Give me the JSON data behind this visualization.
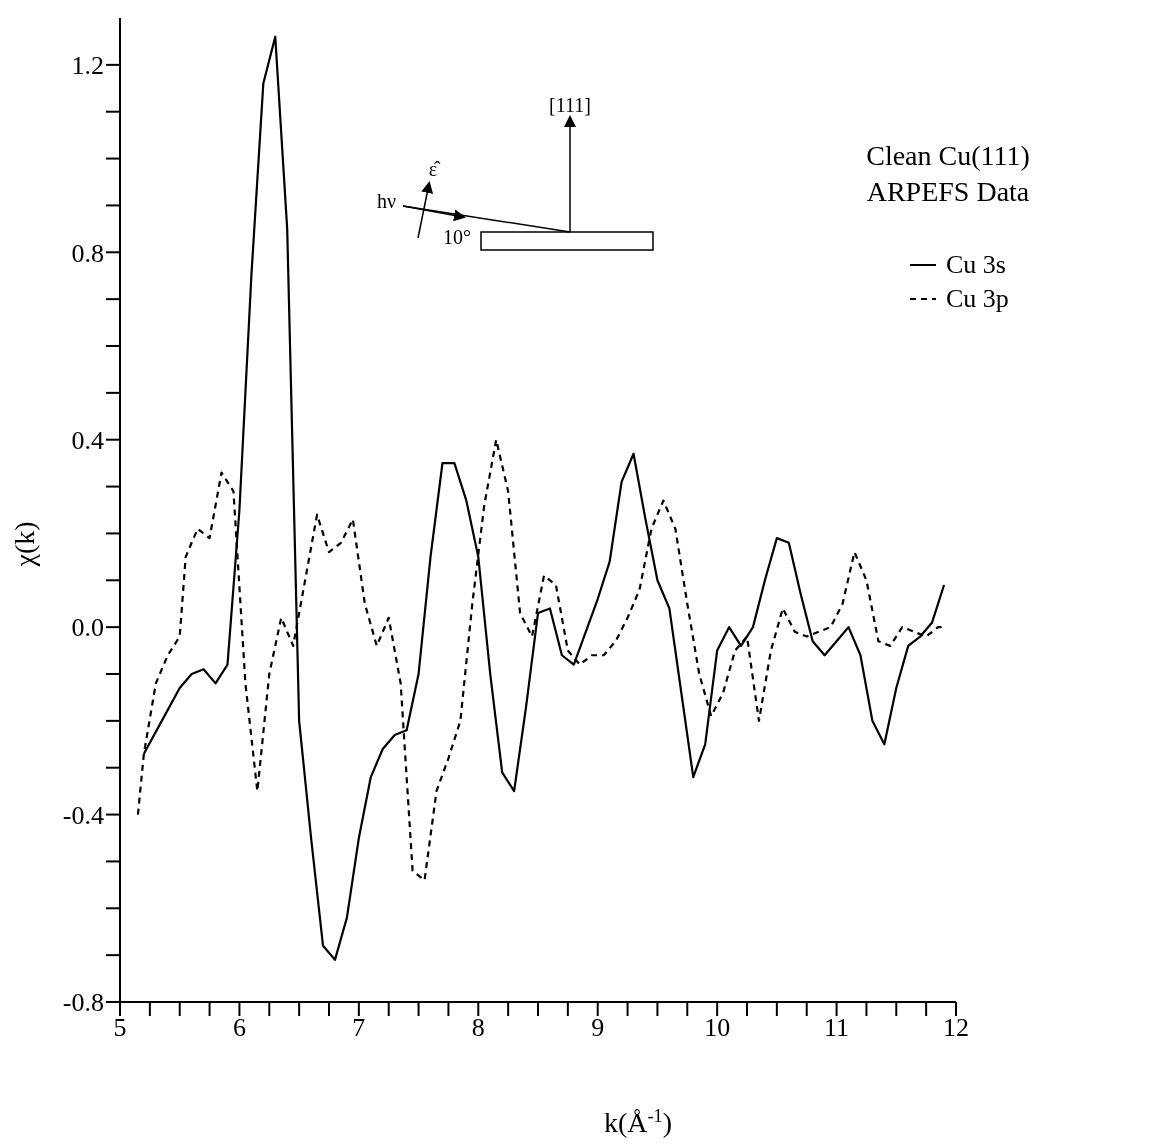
{
  "chart_data": {
    "type": "line",
    "title": "Clean Cu(111)",
    "subtitle": "ARPEFS Data",
    "xlabel": "k(Å$^{-1}$)",
    "ylabel": "χ(k)",
    "xlim": [
      5,
      12
    ],
    "xticks": [
      5,
      {
        "value": 5.25,
        "label": null
      },
      {
        "value": 5.5,
        "label": null
      },
      {
        "value": 5.75,
        "label": null
      },
      6,
      {
        "value": 6.25,
        "label": null
      },
      {
        "value": 6.5,
        "label": null
      },
      {
        "value": 6.75,
        "label": null
      },
      7,
      {
        "value": 7.25,
        "label": null
      },
      {
        "value": 7.5,
        "label": null
      },
      {
        "value": 7.75,
        "label": null
      },
      8,
      {
        "value": 8.25,
        "label": null
      },
      {
        "value": 8.5,
        "label": null
      },
      {
        "value": 8.75,
        "label": null
      },
      9,
      {
        "value": 9.25,
        "label": null
      },
      {
        "value": 9.5,
        "label": null
      },
      {
        "value": 9.75,
        "label": null
      },
      10,
      {
        "value": 10.25,
        "label": null
      },
      {
        "value": 10.5,
        "label": null
      },
      {
        "value": 10.75,
        "label": null
      },
      11,
      {
        "value": 11.25,
        "label": null
      },
      {
        "value": 11.5,
        "label": null
      },
      {
        "value": 11.75,
        "label": null
      },
      12
    ],
    "ylim": [
      -0.8,
      1.3
    ],
    "yticks": [
      -0.8,
      {
        "value": -0.7,
        "label": null
      },
      {
        "value": -0.6,
        "label": null
      },
      {
        "value": -0.5,
        "label": null
      },
      -0.4,
      {
        "value": -0.3,
        "label": null
      },
      {
        "value": -0.2,
        "label": null
      },
      {
        "value": -0.1,
        "label": null
      },
      {
        "value": 0,
        "label": "0.0"
      },
      {
        "value": 0.1,
        "label": null
      },
      {
        "value": 0.2,
        "label": null
      },
      {
        "value": 0.3,
        "label": null
      },
      0.4,
      {
        "value": 0.5,
        "label": null
      },
      {
        "value": 0.6,
        "label": null
      },
      {
        "value": 0.7,
        "label": null
      },
      0.8,
      {
        "value": 0.9,
        "label": null
      },
      {
        "value": 1.0,
        "label": null
      },
      {
        "value": 1.1,
        "label": null
      },
      1.2
    ],
    "grid": false,
    "legend": "top right",
    "marker": "none",
    "annotations": [
      "[111]",
      "ε̂",
      "hν",
      "10°"
    ],
    "series": [
      {
        "name": "Cu 3s",
        "color": "#000000",
        "line_style": "solid",
        "x": [
          5.2,
          5.35,
          5.5,
          5.6,
          5.7,
          5.8,
          5.9,
          6.0,
          6.1,
          6.2,
          6.3,
          6.4,
          6.5,
          6.6,
          6.7,
          6.8,
          6.9,
          7.0,
          7.1,
          7.2,
          7.3,
          7.4,
          7.5,
          7.6,
          7.7,
          7.8,
          7.9,
          8.0,
          8.1,
          8.2,
          8.3,
          8.4,
          8.5,
          8.6,
          8.7,
          8.8,
          8.9,
          9.0,
          9.1,
          9.2,
          9.3,
          9.4,
          9.5,
          9.6,
          9.7,
          9.8,
          9.9,
          10.0,
          10.1,
          10.2,
          10.3,
          10.4,
          10.5,
          10.6,
          10.7,
          10.8,
          10.9,
          11.0,
          11.1,
          11.2,
          11.3,
          11.4,
          11.5,
          11.6,
          11.7,
          11.8,
          11.9
        ],
        "values": [
          -0.27,
          -0.2,
          -0.13,
          -0.1,
          -0.09,
          -0.12,
          -0.08,
          0.25,
          0.75,
          1.16,
          1.26,
          0.85,
          -0.2,
          -0.45,
          -0.68,
          -0.71,
          -0.62,
          -0.45,
          -0.32,
          -0.26,
          -0.23,
          -0.22,
          -0.1,
          0.15,
          0.35,
          0.35,
          0.27,
          0.15,
          -0.1,
          -0.31,
          -0.35,
          -0.17,
          0.03,
          0.04,
          -0.06,
          -0.08,
          -0.01,
          0.06,
          0.14,
          0.31,
          0.37,
          0.23,
          0.1,
          0.04,
          -0.14,
          -0.32,
          -0.25,
          -0.05,
          0.0,
          -0.04,
          0.0,
          0.1,
          0.19,
          0.18,
          0.07,
          -0.03,
          -0.06,
          -0.03,
          0.0,
          -0.06,
          -0.2,
          -0.25,
          -0.13,
          -0.04,
          -0.02,
          0.01,
          0.09
        ]
      },
      {
        "name": "Cu 3p",
        "color": "#000000",
        "line_style": "dashed",
        "x": [
          5.15,
          5.2,
          5.3,
          5.4,
          5.5,
          5.55,
          5.65,
          5.75,
          5.85,
          5.95,
          6.05,
          6.15,
          6.25,
          6.35,
          6.45,
          6.55,
          6.65,
          6.75,
          6.85,
          6.95,
          7.05,
          7.15,
          7.25,
          7.35,
          7.45,
          7.55,
          7.65,
          7.75,
          7.85,
          7.95,
          8.05,
          8.15,
          8.25,
          8.35,
          8.45,
          8.55,
          8.65,
          8.75,
          8.85,
          8.95,
          9.05,
          9.15,
          9.25,
          9.35,
          9.45,
          9.55,
          9.65,
          9.75,
          9.85,
          9.95,
          10.05,
          10.15,
          10.25,
          10.35,
          10.45,
          10.55,
          10.65,
          10.75,
          10.85,
          10.95,
          11.05,
          11.15,
          11.25,
          11.35,
          11.45,
          11.55,
          11.65,
          11.75,
          11.85,
          11.9
        ],
        "values": [
          -0.4,
          -0.27,
          -0.12,
          -0.06,
          -0.02,
          0.15,
          0.21,
          0.19,
          0.33,
          0.29,
          -0.12,
          -0.35,
          -0.1,
          0.02,
          -0.04,
          0.1,
          0.24,
          0.16,
          0.18,
          0.23,
          0.05,
          -0.04,
          0.02,
          -0.12,
          -0.52,
          -0.54,
          -0.35,
          -0.28,
          -0.2,
          0.05,
          0.26,
          0.4,
          0.29,
          0.03,
          -0.02,
          0.11,
          0.09,
          -0.05,
          -0.08,
          -0.06,
          -0.06,
          -0.03,
          0.02,
          0.08,
          0.21,
          0.27,
          0.21,
          0.05,
          -0.1,
          -0.19,
          -0.14,
          -0.05,
          -0.02,
          -0.2,
          -0.05,
          0.04,
          -0.01,
          -0.02,
          -0.01,
          0.0,
          0.05,
          0.16,
          0.1,
          -0.03,
          -0.04,
          0.0,
          -0.01,
          -0.02,
          0.0,
          0.0
        ]
      }
    ]
  }
}
